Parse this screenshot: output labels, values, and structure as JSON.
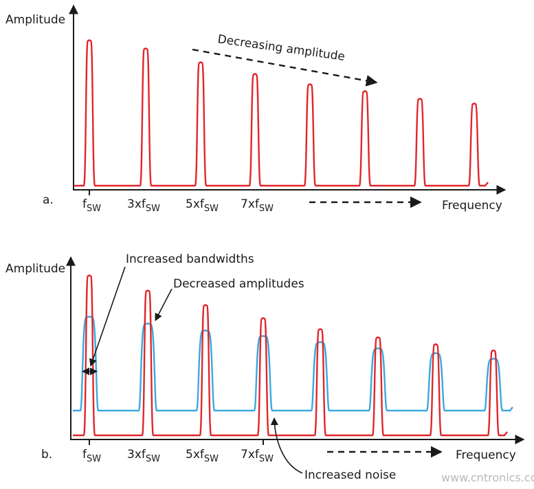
{
  "panel_a": {
    "y_label": "Amplitude",
    "panel_label": "a.",
    "x_labels": [
      {
        "prefix": "f",
        "sub": "SW"
      },
      {
        "prefix": "3xf",
        "sub": "SW"
      },
      {
        "prefix": "5xf",
        "sub": "SW"
      },
      {
        "prefix": "7xf",
        "sub": "SW"
      }
    ],
    "x_label": "Frequency",
    "annotation": "Decreasing amplitude"
  },
  "panel_b": {
    "y_label": "Amplitude",
    "panel_label": "b.",
    "x_labels": [
      {
        "prefix": "f",
        "sub": "SW"
      },
      {
        "prefix": "3xf",
        "sub": "SW"
      },
      {
        "prefix": "5xf",
        "sub": "SW"
      },
      {
        "prefix": "7xf",
        "sub": "SW"
      }
    ],
    "x_label": "Frequency",
    "annotations": [
      "Increased bandwidths",
      "Decreased amplitudes",
      "Increased noise"
    ]
  },
  "watermark": "www.cntronics.com"
}
